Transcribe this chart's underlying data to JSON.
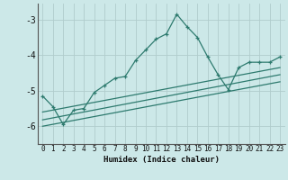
{
  "title": "",
  "xlabel": "Humidex (Indice chaleur)",
  "background_color": "#cce8e8",
  "grid_color": "#b0cccc",
  "line_color": "#2d7a6e",
  "xlim": [
    -0.5,
    23.5
  ],
  "ylim": [
    -6.5,
    -2.55
  ],
  "yticks": [
    -6,
    -5,
    -4,
    -3
  ],
  "xticks": [
    0,
    1,
    2,
    3,
    4,
    5,
    6,
    7,
    8,
    9,
    10,
    11,
    12,
    13,
    14,
    15,
    16,
    17,
    18,
    19,
    20,
    21,
    22,
    23
  ],
  "main_x": [
    0,
    1,
    2,
    3,
    4,
    5,
    6,
    7,
    8,
    9,
    10,
    11,
    12,
    13,
    14,
    15,
    16,
    17,
    18,
    19,
    20,
    21,
    22,
    23
  ],
  "main_y": [
    -5.15,
    -5.45,
    -5.95,
    -5.55,
    -5.5,
    -5.05,
    -4.85,
    -4.65,
    -4.6,
    -4.15,
    -3.85,
    -3.55,
    -3.4,
    -2.85,
    -3.2,
    -3.5,
    -4.05,
    -4.55,
    -4.97,
    -4.35,
    -4.2,
    -4.2,
    -4.2,
    -4.05
  ],
  "line2_x": [
    0,
    23
  ],
  "line2_y": [
    -5.6,
    -4.35
  ],
  "line3_x": [
    0,
    23
  ],
  "line3_y": [
    -5.82,
    -4.55
  ],
  "line4_x": [
    0,
    23
  ],
  "line4_y": [
    -6.0,
    -4.75
  ]
}
